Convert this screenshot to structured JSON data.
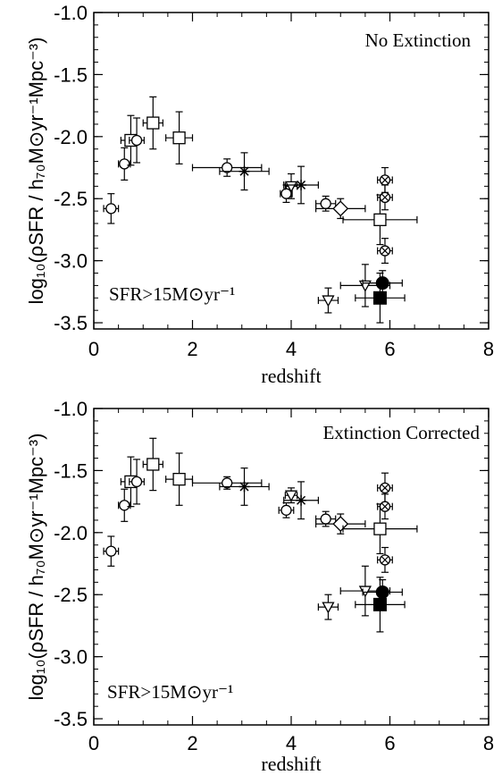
{
  "chart_data": [
    {
      "type": "scatter",
      "title": "",
      "annotation_top": "No Extinction",
      "annotation_bottom": "SFR>15M⊙yr⁻¹",
      "xlabel": "redshift",
      "ylabel": "log₁₀(ρSFR / h₇₀M⊙yr⁻¹Mpc⁻³)",
      "xlim": [
        0,
        8
      ],
      "ylim": [
        -3.55,
        -1.0
      ],
      "xticks": [
        "0",
        "2",
        "4",
        "6",
        "8"
      ],
      "yticks": [
        "-1.0",
        "-1.5",
        "-2.0",
        "-2.5",
        "-3.0",
        "-3.5"
      ],
      "ytick_values": [
        -1.0,
        -1.5,
        -2.0,
        -2.5,
        -3.0,
        -3.5
      ],
      "xtick_values": [
        0,
        2,
        4,
        6,
        8
      ],
      "points": [
        {
          "x": 0.35,
          "y": -2.58,
          "xerr": 0.15,
          "yerr": 0.12,
          "marker": "circle-line"
        },
        {
          "x": 0.62,
          "y": -2.22,
          "xerr": 0.12,
          "yerr": 0.13,
          "marker": "circle-line"
        },
        {
          "x": 0.75,
          "y": -2.03,
          "xerr": 0.2,
          "yerr": 0.2,
          "marker": "square"
        },
        {
          "x": 0.87,
          "y": -2.03,
          "xerr": 0.15,
          "yerr": 0.18,
          "marker": "circle-line"
        },
        {
          "x": 1.2,
          "y": -1.89,
          "xerr": 0.2,
          "yerr": 0.21,
          "marker": "square"
        },
        {
          "x": 1.73,
          "y": -2.01,
          "xerr": 0.27,
          "yerr": 0.21,
          "marker": "square"
        },
        {
          "x": 2.7,
          "y": -2.25,
          "xerr": 0.7,
          "yerr": 0.07,
          "marker": "circle-line"
        },
        {
          "x": 3.05,
          "y": -2.28,
          "xerr": 0.5,
          "yerr": 0.15,
          "marker": "star"
        },
        {
          "x": 3.9,
          "y": -2.46,
          "xerr": 0.12,
          "yerr": 0.07,
          "marker": "circle-line"
        },
        {
          "x": 4.0,
          "y": -2.4,
          "xerr": 0.12,
          "yerr": 0.1,
          "marker": "tri-down"
        },
        {
          "x": 4.2,
          "y": -2.39,
          "xerr": 0.35,
          "yerr": 0.15,
          "marker": "star"
        },
        {
          "x": 4.7,
          "y": -2.54,
          "xerr": 0.2,
          "yerr": 0.06,
          "marker": "circle-line"
        },
        {
          "x": 5.0,
          "y": -2.58,
          "xerr": 0.5,
          "yerr": 0.08,
          "marker": "diamond"
        },
        {
          "x": 4.75,
          "y": -3.32,
          "xerr": 0.2,
          "yerr": 0.1,
          "marker": "tri-down"
        },
        {
          "x": 5.5,
          "y": -3.2,
          "xerr": 0.5,
          "yerr": 0.17,
          "marker": "tri-down"
        },
        {
          "x": 5.8,
          "y": -2.67,
          "xerr": 0.75,
          "yerr": 0.2,
          "marker": "square"
        },
        {
          "x": 5.9,
          "y": -2.35,
          "xerr": 0.15,
          "yerr": 0.1,
          "marker": "circle-x"
        },
        {
          "x": 5.9,
          "y": -2.49,
          "xerr": 0.15,
          "yerr": 0.1,
          "marker": "circle-x"
        },
        {
          "x": 5.9,
          "y": -2.92,
          "xerr": 0.15,
          "yerr": 0.1,
          "marker": "circle-x"
        },
        {
          "x": 5.85,
          "y": -3.18,
          "xerr": 0.4,
          "yerr": 0.1,
          "marker": "filled-circle"
        },
        {
          "x": 5.8,
          "y": -3.3,
          "xerr": 0.5,
          "yerr": 0.2,
          "marker": "filled-square"
        }
      ]
    },
    {
      "type": "scatter",
      "title": "",
      "annotation_top": "Extinction Corrected",
      "annotation_bottom": "SFR>15M⊙yr⁻¹",
      "xlabel": "redshift",
      "ylabel": "log₁₀(ρSFR / h₇₀M⊙yr⁻¹Mpc⁻³)",
      "xlim": [
        0,
        8
      ],
      "ylim": [
        -3.55,
        -1.0
      ],
      "xticks": [
        "0",
        "2",
        "4",
        "6",
        "8"
      ],
      "yticks": [
        "-1.0",
        "-1.5",
        "-2.0",
        "-2.5",
        "-3.0",
        "-3.5"
      ],
      "ytick_values": [
        -1.0,
        -1.5,
        -2.0,
        -2.5,
        -3.0,
        -3.5
      ],
      "xtick_values": [
        0,
        2,
        4,
        6,
        8
      ],
      "points": [
        {
          "x": 0.35,
          "y": -2.15,
          "xerr": 0.15,
          "yerr": 0.12,
          "marker": "circle-line"
        },
        {
          "x": 0.62,
          "y": -1.78,
          "xerr": 0.12,
          "yerr": 0.13,
          "marker": "circle-line"
        },
        {
          "x": 0.75,
          "y": -1.59,
          "xerr": 0.2,
          "yerr": 0.2,
          "marker": "square"
        },
        {
          "x": 0.87,
          "y": -1.59,
          "xerr": 0.15,
          "yerr": 0.18,
          "marker": "circle-line"
        },
        {
          "x": 1.2,
          "y": -1.45,
          "xerr": 0.2,
          "yerr": 0.21,
          "marker": "square"
        },
        {
          "x": 1.73,
          "y": -1.57,
          "xerr": 0.27,
          "yerr": 0.21,
          "marker": "square"
        },
        {
          "x": 2.7,
          "y": -1.6,
          "xerr": 0.7,
          "yerr": 0.05,
          "marker": "circle-line"
        },
        {
          "x": 3.05,
          "y": -1.63,
          "xerr": 0.5,
          "yerr": 0.15,
          "marker": "star"
        },
        {
          "x": 3.9,
          "y": -1.82,
          "xerr": 0.15,
          "yerr": 0.06,
          "marker": "circle-line"
        },
        {
          "x": 4.0,
          "y": -1.7,
          "xerr": 0.12,
          "yerr": 0.06,
          "marker": "tri-down"
        },
        {
          "x": 4.2,
          "y": -1.74,
          "xerr": 0.35,
          "yerr": 0.15,
          "marker": "star"
        },
        {
          "x": 4.7,
          "y": -1.89,
          "xerr": 0.2,
          "yerr": 0.06,
          "marker": "circle-line"
        },
        {
          "x": 5.0,
          "y": -1.93,
          "xerr": 0.5,
          "yerr": 0.08,
          "marker": "diamond"
        },
        {
          "x": 4.75,
          "y": -2.6,
          "xerr": 0.2,
          "yerr": 0.1,
          "marker": "tri-down"
        },
        {
          "x": 5.5,
          "y": -2.47,
          "xerr": 0.5,
          "yerr": 0.2,
          "marker": "tri-down"
        },
        {
          "x": 5.8,
          "y": -1.97,
          "xerr": 0.75,
          "yerr": 0.2,
          "marker": "square"
        },
        {
          "x": 5.9,
          "y": -1.64,
          "xerr": 0.15,
          "yerr": 0.12,
          "marker": "circle-x"
        },
        {
          "x": 5.9,
          "y": -1.79,
          "xerr": 0.15,
          "yerr": 0.1,
          "marker": "circle-x"
        },
        {
          "x": 5.9,
          "y": -2.22,
          "xerr": 0.15,
          "yerr": 0.1,
          "marker": "circle-x"
        },
        {
          "x": 5.85,
          "y": -2.48,
          "xerr": 0.4,
          "yerr": 0.1,
          "marker": "filled-circle"
        },
        {
          "x": 5.8,
          "y": -2.58,
          "xerr": 0.5,
          "yerr": 0.22,
          "marker": "filled-square"
        }
      ]
    }
  ]
}
